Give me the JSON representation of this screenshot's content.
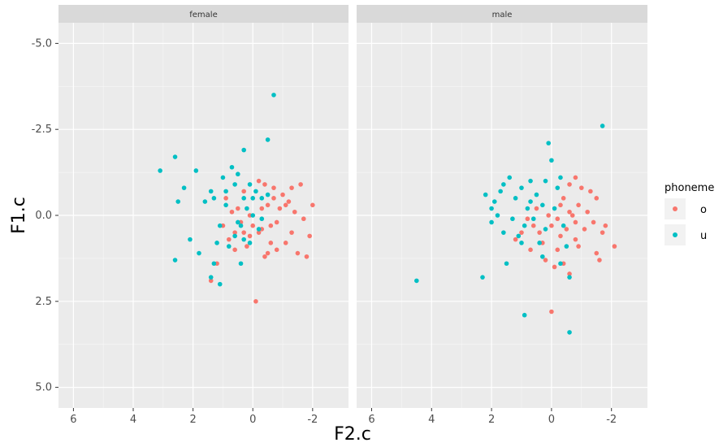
{
  "chart_data": {
    "type": "scatter",
    "xlabel": "F2.c",
    "ylabel": "F1.c",
    "x_reversed": true,
    "y_reversed": true,
    "xlim": [
      6.5,
      -3.2
    ],
    "ylim": [
      -5.6,
      5.6
    ],
    "xticks": [
      "6",
      "4",
      "2",
      "0",
      "-2"
    ],
    "xtick_values": [
      6,
      4,
      2,
      0,
      -2
    ],
    "yticks": [
      "-5.0",
      "-2.5",
      "0.0",
      "2.5",
      "5.0"
    ],
    "ytick_values": [
      -5,
      -2.5,
      0,
      2.5,
      5
    ],
    "grid": true,
    "legend": {
      "title": "phoneme",
      "position": "right",
      "entries": [
        "o",
        "u"
      ]
    },
    "colors": {
      "o": "#F8766D",
      "u": "#00BFC4",
      "panel_bg": "#EBEBEB",
      "strip_bg": "#D9D9D9",
      "grid": "#FFFFFF"
    },
    "panels": [
      {
        "name": "female",
        "series": [
          {
            "name": "o",
            "points": [
              [
                -0.2,
                -1.0
              ],
              [
                -0.5,
                -0.3
              ],
              [
                0.1,
                0.0
              ],
              [
                0.3,
                0.5
              ],
              [
                -0.7,
                -0.8
              ],
              [
                -1.0,
                -0.6
              ],
              [
                0.5,
                -0.2
              ],
              [
                -0.3,
                0.4
              ],
              [
                0.0,
                0.3
              ],
              [
                -0.8,
                0.2
              ],
              [
                -1.2,
                -0.4
              ],
              [
                -1.3,
                0.5
              ],
              [
                -0.6,
                0.8
              ],
              [
                0.2,
                0.9
              ],
              [
                0.8,
                0.7
              ],
              [
                1.0,
                0.3
              ],
              [
                -0.4,
                1.2
              ],
              [
                -1.5,
                1.1
              ],
              [
                -1.8,
                1.2
              ],
              [
                -1.9,
                0.6
              ],
              [
                -2.0,
                -0.3
              ],
              [
                -1.6,
                -0.9
              ],
              [
                -1.1,
                -0.3
              ],
              [
                0.6,
                1.0
              ],
              [
                1.2,
                1.4
              ],
              [
                1.4,
                1.9
              ],
              [
                -0.1,
                2.5
              ],
              [
                0.3,
                -0.7
              ],
              [
                -0.9,
                -0.2
              ],
              [
                -0.4,
                -0.9
              ],
              [
                0.7,
                -0.1
              ],
              [
                -0.6,
                0.3
              ],
              [
                -0.2,
                0.5
              ],
              [
                0.9,
                -0.5
              ],
              [
                -1.4,
                -0.1
              ],
              [
                -0.5,
                1.1
              ],
              [
                0.4,
                0.2
              ],
              [
                -0.8,
                1.0
              ],
              [
                -1.7,
                0.1
              ],
              [
                -0.3,
                -0.2
              ],
              [
                0.1,
                0.6
              ],
              [
                -1.1,
                0.8
              ],
              [
                0.6,
                0.5
              ],
              [
                -0.7,
                -0.5
              ],
              [
                -1.3,
                -0.8
              ]
            ]
          },
          {
            "name": "u",
            "points": [
              [
                -0.7,
                -3.5
              ],
              [
                -0.5,
                -2.2
              ],
              [
                0.3,
                -1.9
              ],
              [
                2.6,
                -1.7
              ],
              [
                3.1,
                -1.3
              ],
              [
                1.9,
                -1.3
              ],
              [
                0.7,
                -1.4
              ],
              [
                0.5,
                -1.2
              ],
              [
                1.0,
                -1.1
              ],
              [
                2.3,
                -0.8
              ],
              [
                1.4,
                -0.7
              ],
              [
                1.3,
                -0.5
              ],
              [
                2.5,
                -0.4
              ],
              [
                1.6,
                -0.4
              ],
              [
                0.3,
                -0.5
              ],
              [
                0.0,
                -0.5
              ],
              [
                -0.3,
                -0.5
              ],
              [
                -0.5,
                -0.6
              ],
              [
                0.2,
                -0.2
              ],
              [
                0.0,
                0.0
              ],
              [
                -0.3,
                0.1
              ],
              [
                0.1,
                -0.9
              ],
              [
                0.6,
                -0.9
              ],
              [
                0.9,
                -0.7
              ],
              [
                1.1,
                0.3
              ],
              [
                0.5,
                0.2
              ],
              [
                -0.2,
                0.4
              ],
              [
                0.6,
                0.6
              ],
              [
                2.1,
                0.7
              ],
              [
                1.2,
                0.8
              ],
              [
                0.8,
                0.9
              ],
              [
                0.3,
                0.7
              ],
              [
                0.1,
                0.8
              ],
              [
                1.8,
                1.1
              ],
              [
                2.6,
                1.3
              ],
              [
                1.3,
                1.4
              ],
              [
                1.4,
                1.8
              ],
              [
                1.1,
                2.0
              ],
              [
                0.4,
                1.4
              ],
              [
                -0.1,
                -0.7
              ],
              [
                0.9,
                -0.3
              ],
              [
                0.4,
                0.3
              ]
            ]
          }
        ]
      },
      {
        "name": "male",
        "series": [
          {
            "name": "o",
            "points": [
              [
                -0.8,
                -1.1
              ],
              [
                -0.6,
                -0.9
              ],
              [
                -1.0,
                -0.8
              ],
              [
                -0.4,
                -0.5
              ],
              [
                -0.9,
                -0.3
              ],
              [
                -1.2,
                -0.1
              ],
              [
                -0.7,
                0.0
              ],
              [
                -0.2,
                0.1
              ],
              [
                0.0,
                0.3
              ],
              [
                -0.5,
                0.4
              ],
              [
                -1.4,
                0.2
              ],
              [
                -1.7,
                0.5
              ],
              [
                -2.1,
                0.9
              ],
              [
                -1.5,
                1.1
              ],
              [
                -0.8,
                0.7
              ],
              [
                -0.3,
                0.6
              ],
              [
                0.3,
                0.8
              ],
              [
                0.7,
                1.0
              ],
              [
                1.0,
                0.5
              ],
              [
                0.6,
                0.3
              ],
              [
                -0.4,
                1.4
              ],
              [
                -0.1,
                1.5
              ],
              [
                0.0,
                2.8
              ],
              [
                0.2,
                1.3
              ],
              [
                1.2,
                0.7
              ],
              [
                -0.6,
                1.7
              ],
              [
                -1.5,
                -0.5
              ],
              [
                -1.1,
                0.4
              ],
              [
                -0.9,
                0.9
              ],
              [
                0.1,
                0.0
              ],
              [
                0.5,
                -0.2
              ],
              [
                -0.3,
                -0.3
              ],
              [
                -0.6,
                -0.1
              ],
              [
                -1.3,
                -0.7
              ],
              [
                -0.2,
                1.0
              ],
              [
                0.4,
                0.5
              ],
              [
                -0.8,
                0.2
              ],
              [
                -1.6,
                1.3
              ],
              [
                0.8,
                0.1
              ],
              [
                -1.8,
                0.3
              ]
            ]
          },
          {
            "name": "u",
            "points": [
              [
                -1.7,
                -2.6
              ],
              [
                0.1,
                -2.1
              ],
              [
                0.0,
                -1.6
              ],
              [
                -0.3,
                -1.1
              ],
              [
                0.2,
                -1.0
              ],
              [
                0.7,
                -1.0
              ],
              [
                1.0,
                -0.8
              ],
              [
                1.4,
                -1.1
              ],
              [
                1.6,
                -0.9
              ],
              [
                2.2,
                -0.6
              ],
              [
                1.9,
                -0.4
              ],
              [
                2.0,
                -0.2
              ],
              [
                1.2,
                -0.5
              ],
              [
                0.5,
                -0.6
              ],
              [
                0.3,
                -0.3
              ],
              [
                -0.1,
                -0.2
              ],
              [
                0.6,
                0.1
              ],
              [
                0.9,
                0.3
              ],
              [
                1.3,
                0.1
              ],
              [
                1.8,
                0.0
              ],
              [
                2.0,
                0.2
              ],
              [
                1.6,
                0.5
              ],
              [
                1.1,
                0.6
              ],
              [
                0.4,
                0.8
              ],
              [
                -0.5,
                0.9
              ],
              [
                -0.3,
                1.4
              ],
              [
                -0.6,
                1.8
              ],
              [
                0.3,
                1.2
              ],
              [
                1.5,
                1.4
              ],
              [
                2.3,
                1.8
              ],
              [
                4.5,
                1.9
              ],
              [
                0.9,
                2.9
              ],
              [
                -0.6,
                3.4
              ],
              [
                0.8,
                -0.2
              ],
              [
                -0.2,
                -0.8
              ],
              [
                1.7,
                -0.7
              ],
              [
                0.2,
                0.4
              ],
              [
                0.7,
                -0.4
              ],
              [
                1.0,
                0.8
              ],
              [
                -0.4,
                0.3
              ]
            ]
          }
        ]
      }
    ]
  }
}
